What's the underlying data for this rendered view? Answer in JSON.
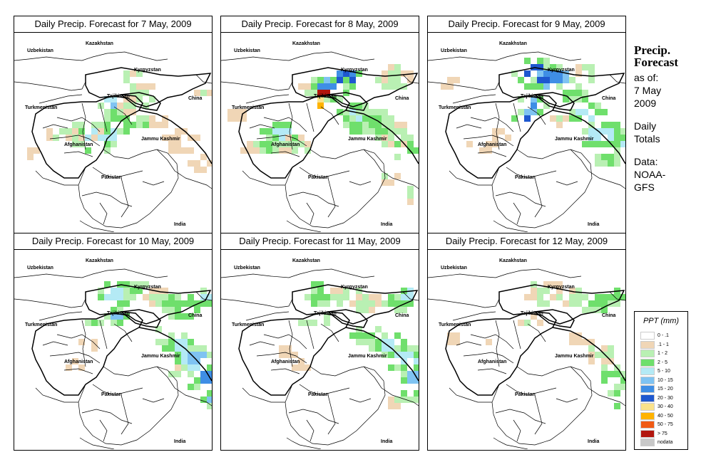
{
  "panels": [
    {
      "title": "Daily Precip. Forecast for  7 May, 2009"
    },
    {
      "title": "Daily Precip. Forecast for  8 May, 2009"
    },
    {
      "title": "Daily Precip. Forecast for  9 May, 2009"
    },
    {
      "title": "Daily Precip. Forecast for  10 May, 2009"
    },
    {
      "title": "Daily Precip. Forecast for  11 May, 2009"
    },
    {
      "title": "Daily Precip. Forecast for  12 May, 2009"
    }
  ],
  "map_labels": {
    "kazakhstan": "Kazakhstan",
    "uzbekistan": "Uzbekistan",
    "kyrgyzstan": "Kyrgyzstan",
    "tajikistan": "Tajikistan",
    "china": "China",
    "turkmenistan": "Turkmenistan",
    "afghanistan": "Afghanistan",
    "jammu_kashmir": "Jammu Kashmir",
    "pakistan": "Pakistan",
    "india": "India"
  },
  "side": {
    "title_line1": "Precip.",
    "title_line2": "Forecast",
    "asof_line1": "as of:",
    "asof_line2": "7 May",
    "asof_line3": "2009",
    "daily_line1": "Daily",
    "daily_line2": "Totals",
    "data_line1": "Data:",
    "data_line2": "NOAA-",
    "data_line3": "GFS"
  },
  "legend": {
    "title": "PPT (mm)",
    "items": [
      {
        "label": "0 - .1",
        "color": "#ffffff"
      },
      {
        "label": ".1 - 1",
        "color": "#f0d6b6"
      },
      {
        "label": "1 - 2",
        "color": "#b9f0b3"
      },
      {
        "label": "2 - 5",
        "color": "#6fdf6c"
      },
      {
        "label": "5 - 10",
        "color": "#b4eaf5"
      },
      {
        "label": "10 - 15",
        "color": "#7fc3f2"
      },
      {
        "label": "15 - 20",
        "color": "#3f8ee5"
      },
      {
        "label": "20 - 30",
        "color": "#1e58cf"
      },
      {
        "label": "30 - 40",
        "color": "#fae28a"
      },
      {
        "label": "40 - 50",
        "color": "#ffb300"
      },
      {
        "label": "50 - 75",
        "color": "#f05a14"
      },
      {
        "label": "> 75",
        "color": "#b2160e"
      },
      {
        "label": "nodata",
        "color": "#c8c8c8"
      }
    ]
  }
}
